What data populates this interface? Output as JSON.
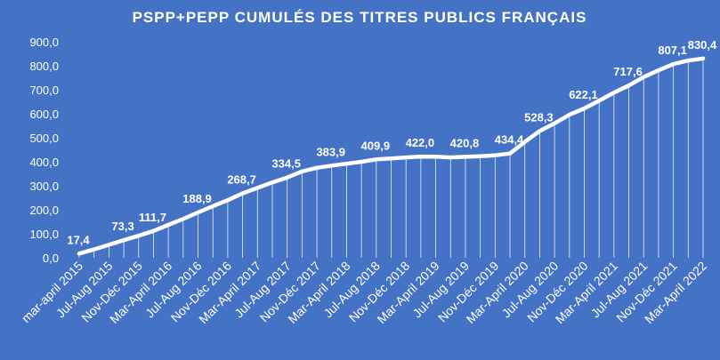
{
  "chart_data": {
    "type": "line",
    "title": "PSPP+PEPP CUMULÉS DES TITRES PUBLICS FRANÇAIS",
    "xlabel": "",
    "ylabel": "",
    "ylim": [
      0,
      900
    ],
    "y_ticks": [
      "0,0",
      "100,0",
      "200,0",
      "300,0",
      "400,0",
      "500,0",
      "600,0",
      "700,0",
      "800,0",
      "900,0"
    ],
    "grid": false,
    "legend": "none",
    "drop_lines": true,
    "colors": {
      "background": "#4472C4",
      "line": "#ffffff",
      "text": "#ffffff"
    },
    "x_tick_labels": [
      "mar-april 2015",
      "Jul-Aug 2015",
      "Nov-Déc 2015",
      "Mar-April 2016",
      "Jul-Aug 2016",
      "Nov-Déc 2016",
      "Mar-April 2017",
      "Jul-Aug 2017",
      "Nov-Déc 2017",
      "Mar-April 2018",
      "Jul-Aug 2018",
      "Nov-Déc 2018",
      "Mar-April 2019",
      "Jul-Aug 2019",
      "Nov-Déc 2019",
      "Mar-April 2020",
      "Jul-Aug 2020",
      "Nov-Déc 2020",
      "Mar-April 2021",
      "Jul-Aug 2021",
      "Nov-Déc 2021",
      "Mar-April 2022"
    ],
    "series": [
      {
        "values": [
          17.4,
          35.0,
          54.0,
          73.3,
          92.0,
          111.7,
          137.0,
          162.0,
          188.9,
          215.0,
          240.0,
          268.7,
          291.0,
          314.0,
          334.5,
          360.0,
          375.0,
          383.9,
          392.0,
          400.0,
          409.9,
          414.0,
          418.0,
          422.0,
          421.0,
          418.0,
          420.8,
          423.0,
          427.0,
          434.4,
          483.0,
          528.3,
          560.0,
          596.0,
          622.1,
          655.0,
          688.0,
          717.6,
          753.0,
          781.0,
          807.1,
          822.0,
          830.4
        ],
        "data_labels": {
          "0": "17,4",
          "3": "73,3",
          "5": "111,7",
          "8": "188,9",
          "11": "268,7",
          "14": "334,5",
          "17": "383,9",
          "20": "409,9",
          "23": "422,0",
          "26": "420,8",
          "29": "434,4",
          "31": "528,3",
          "34": "622,1",
          "37": "717,6",
          "40": "807,1",
          "42": "830,4"
        }
      }
    ]
  }
}
